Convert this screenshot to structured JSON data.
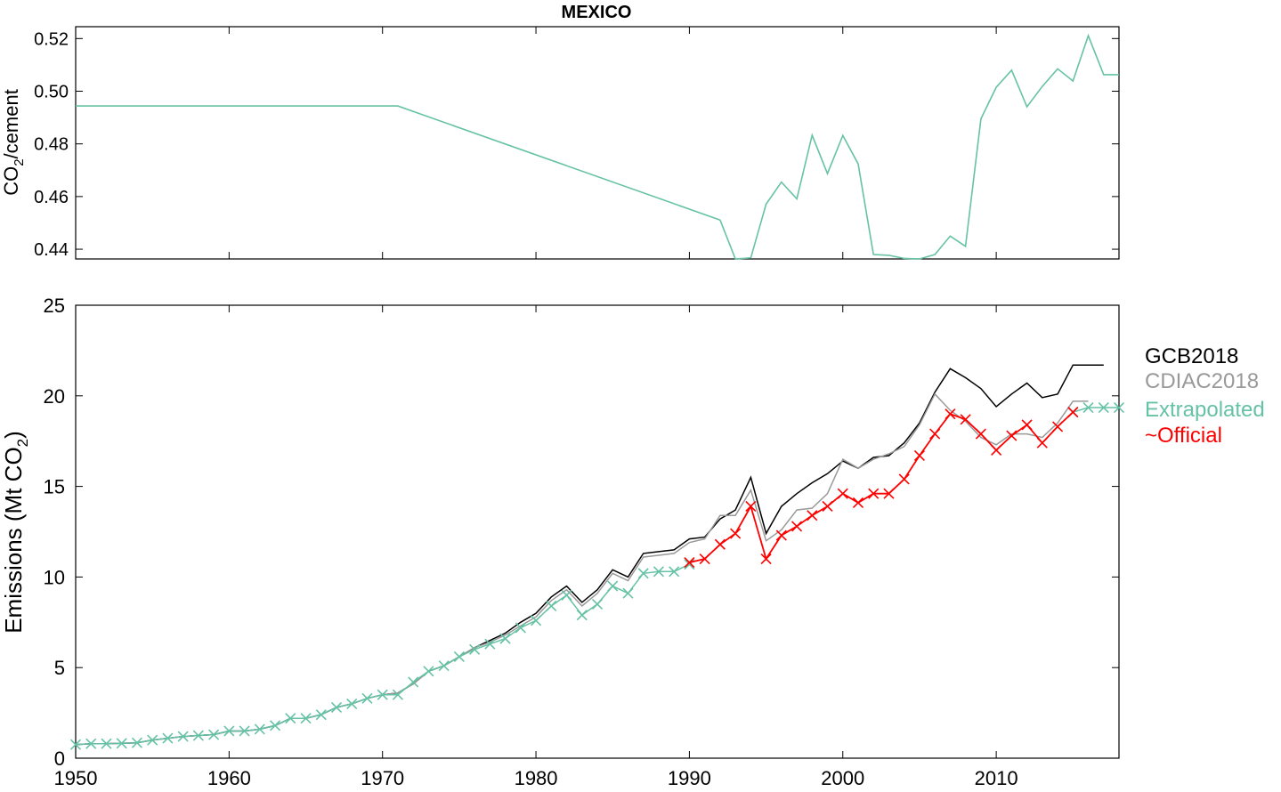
{
  "chart_data": [
    {
      "type": "line",
      "title": "MEXICO",
      "ylabel": "CO2/cement",
      "ylabel_main": "CO",
      "ylabel_sub": "2",
      "ylabel_rest": "/cement",
      "xlim": [
        1950,
        2018
      ],
      "ylim": [
        0.4363,
        0.5245
      ],
      "yticks": [
        "0.44",
        "0.46",
        "0.48",
        "0.50",
        "0.52"
      ],
      "ytick_values": [
        0.44,
        0.46,
        0.48,
        0.5,
        0.52
      ],
      "xtick_values": [
        1960,
        1970,
        1980,
        1990,
        2000,
        2010
      ],
      "color": "#66c2a5",
      "series": [
        {
          "x": [
            1950,
            1971,
            1992,
            1993,
            1994,
            1995,
            1996,
            1997,
            1998,
            1999,
            2000,
            2001,
            2002,
            2003,
            2004,
            2005,
            2006,
            2007,
            2008,
            2009,
            2010,
            2011,
            2012,
            2013,
            2014,
            2015,
            2016,
            2017,
            2018
          ],
          "values": [
            0.4944,
            0.4944,
            0.4511,
            0.4363,
            0.4367,
            0.4571,
            0.4655,
            0.4591,
            0.4833,
            0.4687,
            0.4832,
            0.4724,
            0.438,
            0.4377,
            0.4365,
            0.4363,
            0.438,
            0.445,
            0.4411,
            0.4895,
            0.5015,
            0.508,
            0.4941,
            0.5018,
            0.5085,
            0.5039,
            0.5211,
            0.5063,
            0.5063
          ]
        }
      ]
    },
    {
      "type": "line",
      "ylabel": "Emissions (Mt CO2)",
      "ylabel_main": "Emissions (Mt CO",
      "ylabel_sub": "2",
      "ylabel_rest": ")",
      "xlim": [
        1950,
        2018
      ],
      "ylim": [
        0,
        25
      ],
      "xticks": [
        "1950",
        "1960",
        "1970",
        "1980",
        "1990",
        "2000",
        "2010"
      ],
      "xtick_values": [
        1950,
        1960,
        1970,
        1980,
        1990,
        2000,
        2010
      ],
      "yticks": [
        "0",
        "5",
        "10",
        "15",
        "20",
        "25"
      ],
      "ytick_values": [
        0,
        5,
        10,
        15,
        20,
        25
      ],
      "legend_position": "right, outside",
      "series": [
        {
          "name": "GCB2018",
          "color": "#000000",
          "marker": "none",
          "x": [
            1950,
            1951,
            1952,
            1953,
            1954,
            1955,
            1956,
            1957,
            1958,
            1959,
            1960,
            1961,
            1962,
            1963,
            1964,
            1965,
            1966,
            1967,
            1968,
            1969,
            1970,
            1971,
            1972,
            1973,
            1974,
            1975,
            1976,
            1977,
            1978,
            1979,
            1980,
            1981,
            1982,
            1983,
            1984,
            1985,
            1986,
            1987,
            1988,
            1989,
            1990,
            1991,
            1992,
            1993,
            1994,
            1995,
            1996,
            1997,
            1998,
            1999,
            2000,
            2001,
            2002,
            2003,
            2004,
            2005,
            2006,
            2007,
            2008,
            2009,
            2010,
            2011,
            2012,
            2013,
            2014,
            2015,
            2016,
            2017
          ],
          "values": [
            0.75,
            0.8,
            0.8,
            0.82,
            0.85,
            1.0,
            1.1,
            1.2,
            1.25,
            1.3,
            1.5,
            1.5,
            1.6,
            1.8,
            2.2,
            2.2,
            2.4,
            2.8,
            3.0,
            3.3,
            3.5,
            3.6,
            4.1,
            4.8,
            5.1,
            5.6,
            6.1,
            6.5,
            6.9,
            7.5,
            8.0,
            8.9,
            9.5,
            8.6,
            9.3,
            10.4,
            10.0,
            11.3,
            11.4,
            11.5,
            12.1,
            12.2,
            13.2,
            13.7,
            15.5,
            12.4,
            13.9,
            14.6,
            15.2,
            15.7,
            16.4,
            16.0,
            16.6,
            16.7,
            17.4,
            18.5,
            20.2,
            21.5,
            21.0,
            20.4,
            19.4,
            20.1,
            20.7,
            19.9,
            20.1,
            21.7,
            21.7,
            21.7
          ]
        },
        {
          "name": "CDIAC2018",
          "color": "#999999",
          "marker": "none",
          "x": [
            1950,
            1951,
            1952,
            1953,
            1954,
            1955,
            1956,
            1957,
            1958,
            1959,
            1960,
            1961,
            1962,
            1963,
            1964,
            1965,
            1966,
            1967,
            1968,
            1969,
            1970,
            1971,
            1972,
            1973,
            1974,
            1975,
            1976,
            1977,
            1978,
            1979,
            1980,
            1981,
            1982,
            1983,
            1984,
            1985,
            1986,
            1987,
            1988,
            1989,
            1990,
            1991,
            1992,
            1993,
            1994,
            1995,
            1996,
            1997,
            1998,
            1999,
            2000,
            2001,
            2002,
            2003,
            2004,
            2005,
            2006,
            2007,
            2008,
            2009,
            2010,
            2011,
            2012,
            2013,
            2014,
            2015,
            2016
          ],
          "values": [
            0.75,
            0.8,
            0.8,
            0.82,
            0.85,
            1.0,
            1.1,
            1.2,
            1.25,
            1.3,
            1.5,
            1.5,
            1.6,
            1.8,
            2.2,
            2.2,
            2.4,
            2.8,
            3.0,
            3.3,
            3.5,
            3.6,
            4.1,
            4.8,
            5.1,
            5.6,
            6.1,
            6.4,
            6.8,
            7.3,
            7.8,
            8.7,
            9.3,
            8.4,
            9.1,
            10.2,
            9.8,
            11.1,
            11.2,
            11.3,
            11.9,
            12.1,
            13.4,
            13.4,
            14.8,
            12.0,
            12.6,
            13.7,
            13.8,
            14.6,
            16.5,
            16.0,
            16.5,
            16.8,
            17.2,
            18.4,
            20.1,
            19.2,
            18.6,
            17.7,
            17.3,
            17.9,
            17.9,
            17.7,
            18.5,
            19.7,
            19.7
          ]
        },
        {
          "name": "Extrapolated",
          "color": "#66c2a5",
          "marker": "x",
          "x": [
            1950,
            1951,
            1952,
            1953,
            1954,
            1955,
            1956,
            1957,
            1958,
            1959,
            1960,
            1961,
            1962,
            1963,
            1964,
            1965,
            1966,
            1967,
            1968,
            1969,
            1970,
            1971,
            1972,
            1973,
            1974,
            1975,
            1976,
            1977,
            1978,
            1979,
            1980,
            1981,
            1982,
            1983,
            1984,
            1985,
            1986,
            1987,
            1988,
            1989,
            1990,
            null,
            2015,
            2016,
            2017,
            2018
          ],
          "values": [
            0.75,
            0.8,
            0.8,
            0.82,
            0.85,
            1.0,
            1.1,
            1.2,
            1.25,
            1.3,
            1.5,
            1.5,
            1.6,
            1.8,
            2.2,
            2.2,
            2.4,
            2.8,
            3.0,
            3.3,
            3.5,
            3.5,
            4.2,
            4.8,
            5.1,
            5.6,
            6.0,
            6.3,
            6.6,
            7.2,
            7.6,
            8.4,
            9.0,
            7.9,
            8.5,
            9.5,
            9.1,
            10.2,
            10.3,
            10.3,
            10.7,
            null,
            19.1,
            19.35,
            19.35,
            19.35
          ]
        },
        {
          "name": "~Official",
          "color": "#ff0000",
          "marker": "x",
          "x": [
            1990,
            1991,
            1992,
            1993,
            1994,
            1995,
            1996,
            1997,
            1998,
            1999,
            2000,
            2001,
            2002,
            2003,
            2004,
            2005,
            2006,
            2007,
            2008,
            2009,
            2010,
            2011,
            2012,
            2013,
            2014,
            2015
          ],
          "values": [
            10.8,
            11.0,
            11.8,
            12.4,
            13.9,
            11.0,
            12.3,
            12.8,
            13.4,
            13.9,
            14.6,
            14.1,
            14.6,
            14.6,
            15.4,
            16.7,
            17.9,
            19.0,
            18.7,
            17.9,
            17.0,
            17.8,
            18.4,
            17.4,
            18.3,
            19.1
          ]
        }
      ]
    }
  ]
}
